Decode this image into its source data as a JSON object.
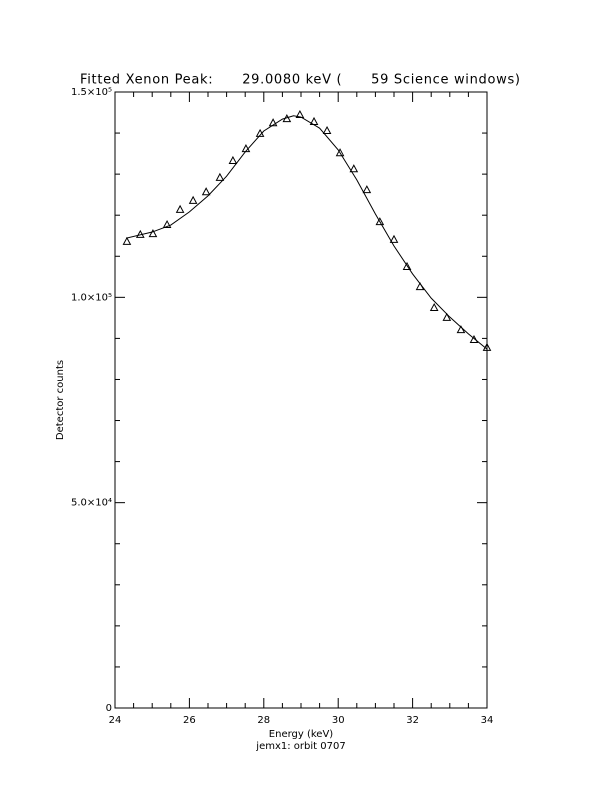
{
  "chart_data": {
    "type": "scatter",
    "title": "Fitted Xenon Peak:      29.0080 keV (      59 Science windows)",
    "x_label": "Energy (keV)",
    "y_label": "Detector counts",
    "subtitle": "jemx1: orbit 0707",
    "xlim": [
      24,
      34
    ],
    "ylim": [
      0,
      150000
    ],
    "xticks": [
      24,
      26,
      28,
      30,
      32,
      34
    ],
    "yticks": [
      0,
      {
        "value": 50000,
        "label": "5.0×10⁴"
      },
      {
        "value": 100000,
        "label": "1.0×10⁵"
      },
      {
        "value": 150000,
        "label": "1.5×10⁵"
      }
    ],
    "xminorticks": [
      24.5,
      25,
      25.5,
      26.5,
      27,
      27.5,
      28.5,
      29,
      29.5,
      30.5,
      31,
      31.5,
      32.5,
      33,
      33.5
    ],
    "yminorticks": [
      10000,
      20000,
      30000,
      40000,
      60000,
      70000,
      80000,
      90000,
      110000,
      120000,
      130000,
      140000
    ],
    "series": [
      {
        "type": "scatter",
        "marker": "triangle",
        "color": "#000000",
        "x": [
          24.32,
          24.68,
          25.02,
          25.4,
          25.75,
          26.1,
          26.45,
          26.82,
          27.17,
          27.52,
          27.9,
          28.25,
          28.62,
          28.97,
          29.35,
          29.7,
          30.05,
          30.42,
          30.77,
          31.12,
          31.5,
          31.85,
          32.2,
          32.58,
          32.92,
          33.3,
          33.65,
          34.0
        ],
        "values": [
          113500,
          115200,
          115400,
          117600,
          121300,
          123500,
          125600,
          129100,
          133200,
          136100,
          139800,
          142400,
          143400,
          144400,
          142700,
          140500,
          135100,
          131200,
          126100,
          118300,
          114000,
          107400,
          102500,
          97400,
          95000,
          92000,
          89600,
          87700
        ]
      },
      {
        "type": "line",
        "color": "#000000",
        "x": [
          24.3,
          25,
          25.5,
          26,
          26.5,
          27,
          27.5,
          28,
          28.5,
          28.8,
          29,
          29.5,
          30,
          30.5,
          31,
          31.5,
          32,
          32.5,
          33,
          33.5,
          34
        ],
        "values": [
          114400,
          115900,
          117600,
          120800,
          124700,
          129500,
          135400,
          140500,
          143400,
          144200,
          143900,
          141200,
          135900,
          128600,
          120300,
          112500,
          105700,
          99800,
          95200,
          91100,
          87400
        ]
      }
    ]
  }
}
